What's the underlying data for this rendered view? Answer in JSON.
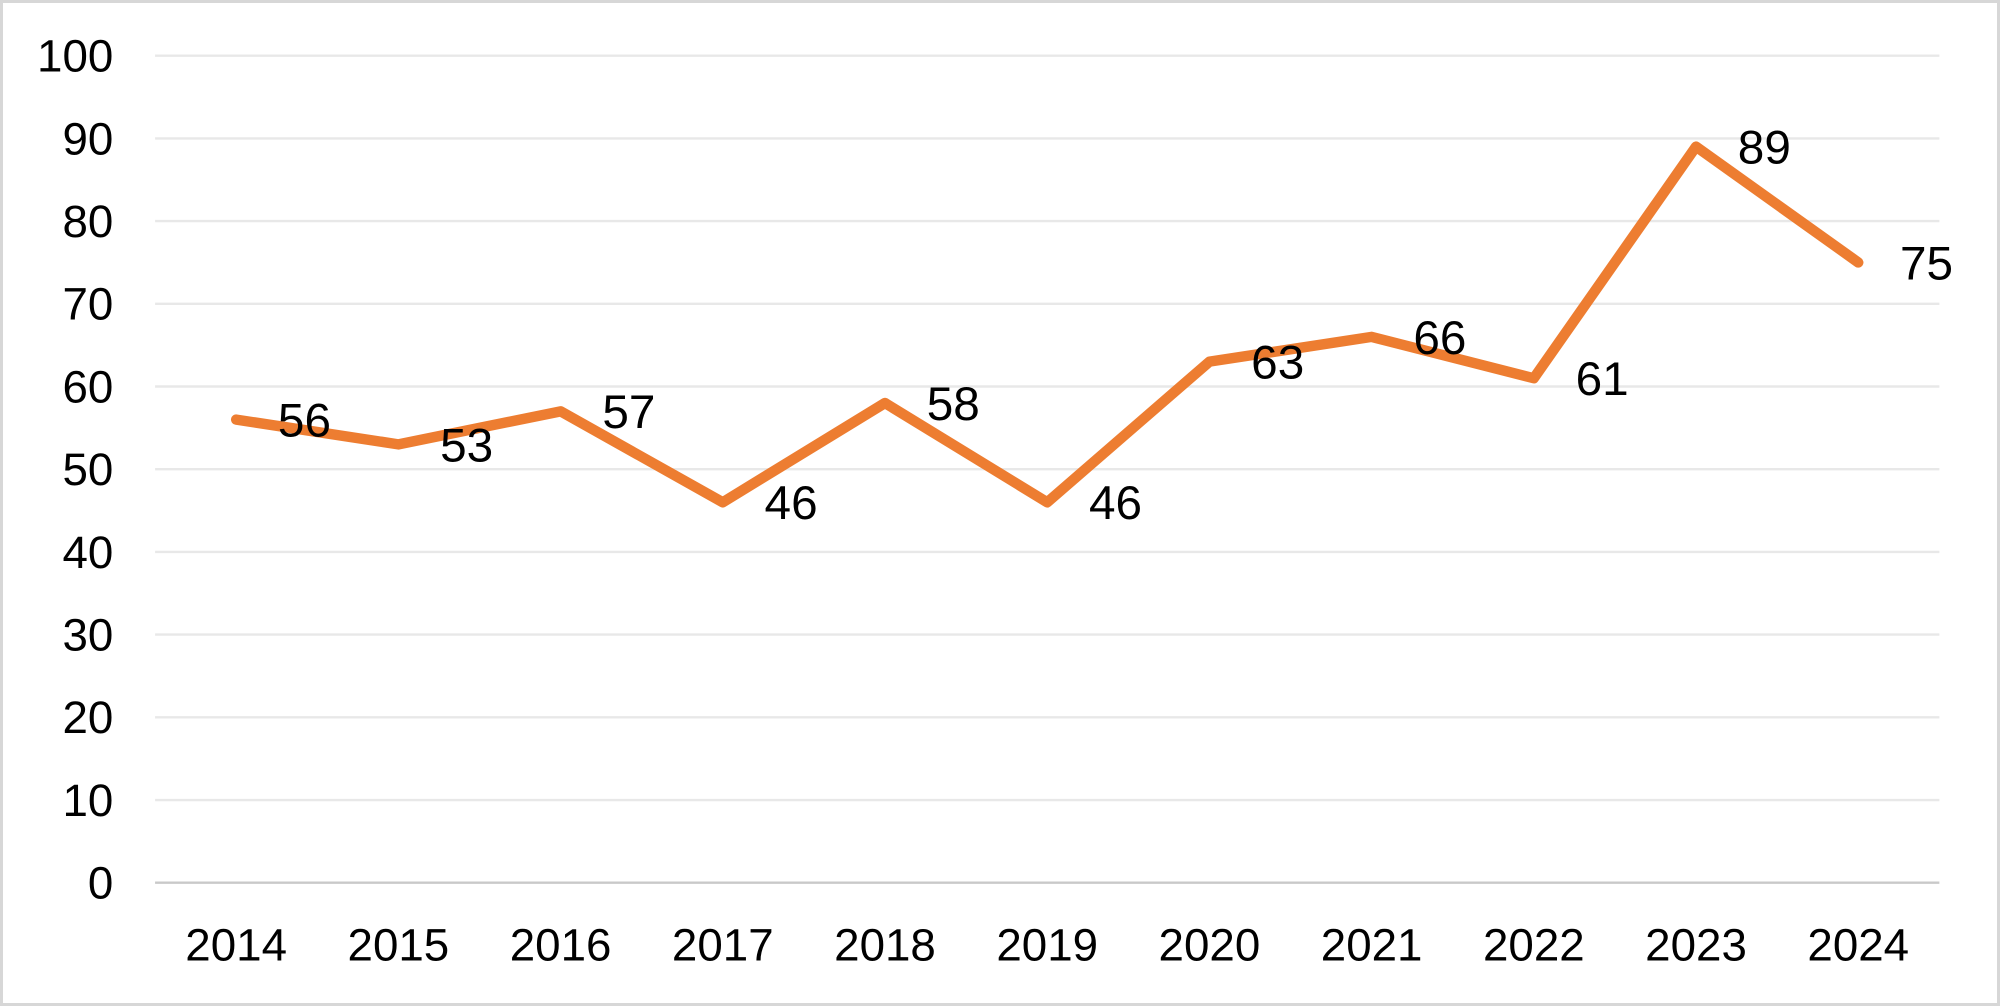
{
  "chart_data": {
    "type": "line",
    "title": "",
    "xlabel": "",
    "ylabel": "",
    "categories": [
      "2014",
      "2015",
      "2016",
      "2017",
      "2018",
      "2019",
      "2020",
      "2021",
      "2022",
      "2023",
      "2024"
    ],
    "series": [
      {
        "name": "values",
        "values": [
          56,
          53,
          57,
          46,
          58,
          46,
          63,
          66,
          61,
          89,
          75
        ]
      }
    ],
    "data_labels": [
      56,
      53,
      57,
      46,
      58,
      46,
      63,
      66,
      61,
      89,
      75
    ],
    "data_label_position": "right",
    "ylim": [
      0,
      100
    ],
    "ytick_step": 10,
    "ytick_labels": [
      "0",
      "10",
      "20",
      "30",
      "40",
      "50",
      "60",
      "70",
      "80",
      "90",
      "100"
    ],
    "grid": "horizontal",
    "legend": "none",
    "colors": {
      "line": "#ED7D31",
      "gridline": "#E8E8E8",
      "axis_baseline": "#C9C9C9",
      "text": "#000000",
      "frame_border": "#D7D7D7",
      "background": "#FFFFFF"
    }
  }
}
